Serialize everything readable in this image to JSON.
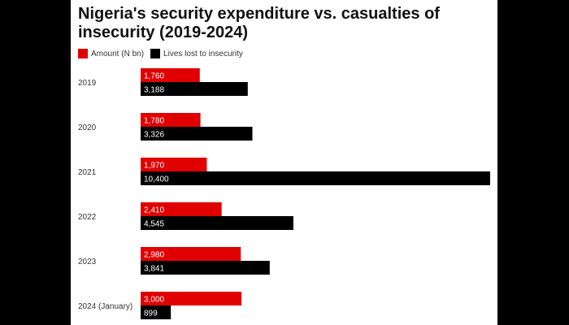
{
  "chart_data": {
    "type": "bar",
    "orientation": "horizontal",
    "title": "Nigeria's security expenditure vs. casualties of insecurity (2019-2024)",
    "categories": [
      "2019",
      "2020",
      "2021",
      "2022",
      "2023",
      "2024 (January)"
    ],
    "series": [
      {
        "name": "Amount (N bn)",
        "color": "#e00000",
        "values": [
          1760,
          1780,
          1970,
          2410,
          2980,
          3000
        ],
        "labels": [
          "1,760",
          "1,780",
          "1,970",
          "2,410",
          "2,980",
          "3,000"
        ]
      },
      {
        "name": "Lives lost to insecurity",
        "color": "#000000",
        "values": [
          3188,
          3326,
          10400,
          4545,
          3841,
          899
        ],
        "labels": [
          "3,188",
          "3,326",
          "10,400",
          "4,545",
          "3,841",
          "899"
        ]
      }
    ],
    "legend": "top-left",
    "grid": false,
    "data_labels": true
  }
}
